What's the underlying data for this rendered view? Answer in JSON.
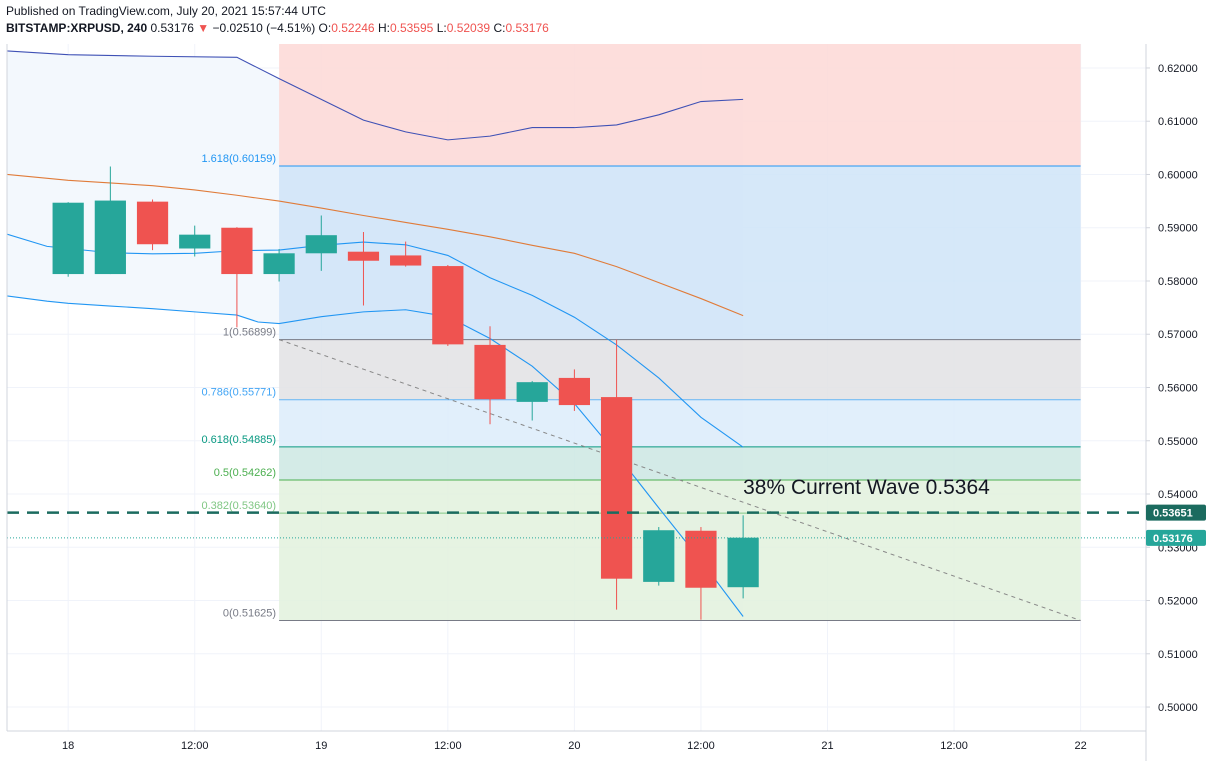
{
  "header": {
    "published": "Published on TradingView.com, July 20, 2021 15:57:44 UTC",
    "symbol": "BITSTAMP:XRPUSD, 240",
    "last": "0.53176",
    "change": "−0.02510 (−4.51%)",
    "o_label": "O:",
    "o_value": "0.52246",
    "h_label": "H:",
    "h_value": "0.53595",
    "l_label": "L:",
    "l_value": "0.52039",
    "c_label": "C:",
    "c_value": "0.53176"
  },
  "colors": {
    "up": "#26a69a",
    "down": "#ef5350",
    "background": "#ffffff",
    "fib_top": "#fdd8d6",
    "fib_blue": "#cfe4f8",
    "fib_gray": "#e2e2e4",
    "fib_lightblue": "#dcecfa",
    "fib_teal": "#cde8e3",
    "fib_green": "#e2f1dd",
    "channel_fill": "#f3f8fd",
    "upper_line": "#3f51b5",
    "middle_line": "#e07b39",
    "lower_line": "#2196f3",
    "wave_line": "#1b6b5f"
  },
  "chart_data": {
    "type": "candlestick",
    "title": "",
    "x_ticks": [
      "18",
      "12:00",
      "19",
      "12:00",
      "20",
      "12:00",
      "21",
      "12:00",
      "22"
    ],
    "y_ticks": [
      "0.62000",
      "0.61000",
      "0.60000",
      "0.59000",
      "0.58000",
      "0.57000",
      "0.56000",
      "0.55000",
      "0.54000",
      "0.53000",
      "0.52000",
      "0.51000",
      "0.50000"
    ],
    "ylim": [
      0.4955,
      0.6245
    ],
    "xlim": [
      -1.45,
      25.55
    ],
    "candles": [
      {
        "i": 0,
        "open": 0.5813,
        "high": 0.5948,
        "low": 0.5808,
        "close": 0.5947
      },
      {
        "i": 1,
        "open": 0.5813,
        "high": 0.6015,
        "low": 0.5813,
        "close": 0.5951
      },
      {
        "i": 2,
        "open": 0.5949,
        "high": 0.5953,
        "low": 0.5858,
        "close": 0.5869
      },
      {
        "i": 3,
        "open": 0.5861,
        "high": 0.5904,
        "low": 0.5846,
        "close": 0.5887
      },
      {
        "i": 4,
        "open": 0.59,
        "high": 0.5901,
        "low": 0.5713,
        "close": 0.5813
      },
      {
        "i": 5,
        "open": 0.5813,
        "high": 0.586,
        "low": 0.5799,
        "close": 0.5852
      },
      {
        "i": 6,
        "open": 0.5852,
        "high": 0.5923,
        "low": 0.5819,
        "close": 0.5886
      },
      {
        "i": 7,
        "open": 0.5855,
        "high": 0.5892,
        "low": 0.5754,
        "close": 0.5838
      },
      {
        "i": 8,
        "open": 0.5848,
        "high": 0.5874,
        "low": 0.5827,
        "close": 0.5829
      },
      {
        "i": 9,
        "open": 0.5828,
        "high": 0.583,
        "low": 0.5678,
        "close": 0.5681
      },
      {
        "i": 10,
        "open": 0.568,
        "high": 0.5715,
        "low": 0.5531,
        "close": 0.5578
      },
      {
        "i": 11,
        "open": 0.5573,
        "high": 0.5612,
        "low": 0.5538,
        "close": 0.561
      },
      {
        "i": 12,
        "open": 0.5618,
        "high": 0.5634,
        "low": 0.5556,
        "close": 0.5567
      },
      {
        "i": 13,
        "open": 0.5582,
        "high": 0.569,
        "low": 0.5183,
        "close": 0.5241
      },
      {
        "i": 14,
        "open": 0.5235,
        "high": 0.5338,
        "low": 0.5228,
        "close": 0.5332
      },
      {
        "i": 15,
        "open": 0.5331,
        "high": 0.5338,
        "low": 0.5164,
        "close": 0.5224
      },
      {
        "i": 16,
        "open": 0.5225,
        "high": 0.536,
        "low": 0.5204,
        "close": 0.5318
      }
    ],
    "series": [
      {
        "name": "",
        "color": "#3f51b5",
        "x": [
          -1.45,
          0,
          2,
          4,
          5,
          7,
          8,
          9,
          10,
          11,
          12,
          13,
          14,
          15,
          16
        ],
        "y": [
          0.6232,
          0.6225,
          0.6222,
          0.622,
          0.618,
          0.6102,
          0.608,
          0.6065,
          0.6072,
          0.6088,
          0.6088,
          0.6093,
          0.6112,
          0.6137,
          0.6141
        ]
      },
      {
        "name": "",
        "color": "#e07b39",
        "x": [
          -1.45,
          0,
          2,
          3,
          4,
          5,
          6,
          7,
          8,
          9,
          10,
          11,
          12,
          13,
          14,
          15,
          16
        ],
        "y": [
          0.6,
          0.5989,
          0.5979,
          0.5971,
          0.5961,
          0.595,
          0.5937,
          0.5923,
          0.591,
          0.5897,
          0.5883,
          0.5867,
          0.5852,
          0.5827,
          0.5797,
          0.5767,
          0.5735
        ]
      },
      {
        "name": "",
        "color": "#2196f3",
        "x": [
          -1.45,
          -0.5,
          0,
          1,
          2,
          3,
          4,
          4.5,
          5,
          6,
          7,
          8,
          9,
          10,
          11,
          12,
          13,
          14,
          15,
          16
        ],
        "y": [
          0.5772,
          0.5762,
          0.5758,
          0.5753,
          0.5748,
          0.5742,
          0.5736,
          0.5723,
          0.572,
          0.5733,
          0.5742,
          0.5746,
          0.5733,
          0.5692,
          0.564,
          0.557,
          0.5475,
          0.5374,
          0.5275,
          0.517
        ]
      },
      {
        "name": "",
        "color": "#2196f3",
        "x": [
          -1.45,
          -0.5,
          1,
          2,
          3,
          4,
          5,
          6,
          7,
          8,
          9,
          10,
          11,
          12,
          13,
          14,
          15,
          16
        ],
        "y": [
          0.5888,
          0.5865,
          0.5853,
          0.5851,
          0.5852,
          0.5857,
          0.5858,
          0.5867,
          0.5873,
          0.5868,
          0.5848,
          0.5806,
          0.5773,
          0.5732,
          0.568,
          0.5618,
          0.5544,
          0.5488
        ]
      }
    ],
    "fib": {
      "x_start": 5.0,
      "x_end": 24.0,
      "levels": [
        {
          "ratio": "1.618",
          "value": 0.60159,
          "label": "1.618(0.60159)",
          "color": "#2196f3",
          "label_color": "#2196f3"
        },
        {
          "ratio": "1",
          "value": 0.56899,
          "label": "1(0.56899)",
          "color": "#787b86",
          "label_color": "#787b86"
        },
        {
          "ratio": "0.786",
          "value": 0.55771,
          "label": "0.786(0.55771)",
          "color": "#64b5f6",
          "label_color": "#42a5f5"
        },
        {
          "ratio": "0.618",
          "value": 0.54885,
          "label": "0.618(0.54885)",
          "color": "#089981",
          "label_color": "#089981"
        },
        {
          "ratio": "0.5",
          "value": 0.54262,
          "label": "0.5(0.54262)",
          "color": "#4caf50",
          "label_color": "#4caf50"
        },
        {
          "ratio": "0.382",
          "value": 0.5364,
          "label": "0.382(0.53640)",
          "color": "#81c784",
          "label_color": "#81c784"
        },
        {
          "ratio": "0",
          "value": 0.51625,
          "label": "0(0.51625)",
          "color": "#787b86",
          "label_color": "#787b86"
        }
      ],
      "trend_from": {
        "x": 5.0,
        "y": 0.56899
      },
      "trend_to": {
        "x": 24.0,
        "y": 0.51625
      }
    },
    "wave_level": {
      "value": 0.53651,
      "label": "0.53651",
      "color": "#1b6b5f"
    },
    "last_price": {
      "value": 0.53176,
      "label": "0.53176",
      "color": "#26a69a"
    },
    "annotation": {
      "text": "38% Current Wave 0.5364",
      "x": 16.0,
      "y": 0.54
    }
  }
}
